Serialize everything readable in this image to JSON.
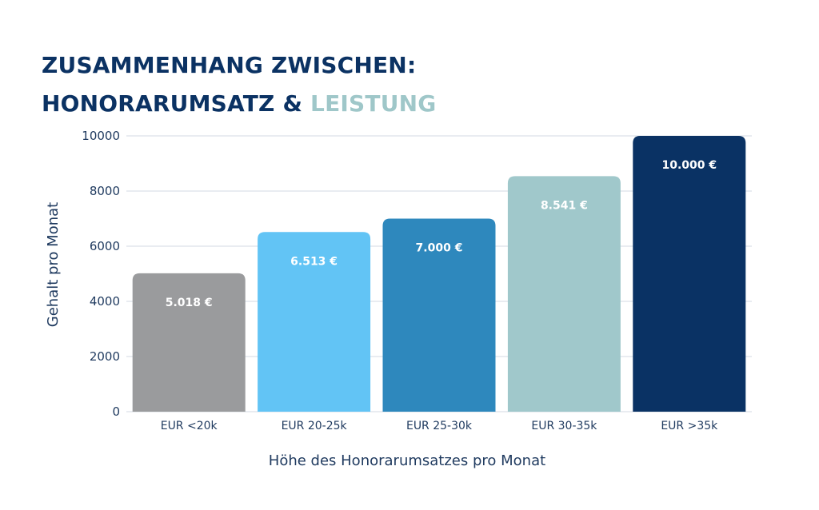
{
  "title": {
    "line1": "ZUSAMMENHANG ZWISCHEN:",
    "line2_main": "HONORARUMSATZ & ",
    "line2_accent": "LEISTUNG"
  },
  "colors": {
    "title": "#0b3263",
    "accent": "#9fc7c9",
    "axis_text": "#1f3a5f",
    "grid": "#d3dae3"
  },
  "chart_data": {
    "type": "bar",
    "title": "ZUSAMMENHANG ZWISCHEN: HONORARUMSATZ & LEISTUNG",
    "xlabel": "Höhe des Honorarumsatzes pro Monat",
    "ylabel": "Gehalt pro Monat",
    "ylim": [
      0,
      10000
    ],
    "yticks": [
      0,
      2000,
      4000,
      6000,
      8000,
      10000
    ],
    "grid": true,
    "categories": [
      "EUR <20k",
      "EUR 20-25k",
      "EUR 25-30k",
      "EUR 30-35k",
      "EUR >35k"
    ],
    "values": [
      5018,
      6513,
      7000,
      8541,
      10000
    ],
    "data_labels": [
      "5.018 €",
      "6.513 €",
      "7.000 €",
      "8.541 €",
      "10.000 €"
    ],
    "bar_colors": [
      "#9a9b9d",
      "#62c4f5",
      "#2e88bd",
      "#a0c8cb",
      "#0a3264"
    ]
  }
}
